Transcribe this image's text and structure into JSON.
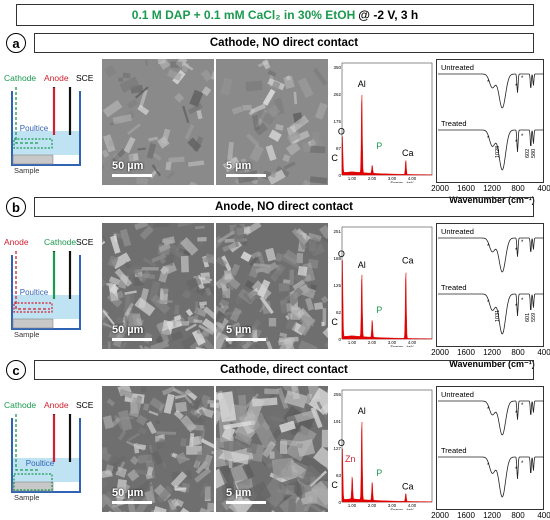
{
  "header": {
    "title_green": "0.1 M DAP + 0.1 mM CaCl₂ in 30% EtOH",
    "title_black": "@ -2 V, 3 h"
  },
  "colors": {
    "green": "#1a9a4e",
    "red": "#d1202f",
    "blue": "#2f64b5",
    "eds_fill": "#e00000"
  },
  "panels": [
    {
      "letter": "a",
      "label": "Cathode, NO direct contact",
      "schematic": {
        "labels": [
          "Cathode",
          "Anode",
          "SCE"
        ],
        "label_colors": [
          "#1a9a4e",
          "#d1202f",
          "#000000"
        ],
        "poultice": "Poultice",
        "sample": "Sample",
        "wet_box_color": "#1a9a4e",
        "direct_contact": false
      },
      "sem_left": {
        "scale": "50 µm"
      },
      "sem_right": {
        "scale": "5 µm"
      },
      "eds": {
        "ymax": "350",
        "yticks": [
          "350",
          "262",
          "175",
          "87",
          "0"
        ],
        "xticks": [
          "1.00",
          "2.00",
          "3.00",
          "4.00"
        ],
        "xlabel": "Energy - keV",
        "peaks": [
          {
            "label": "C",
            "e": 0.28,
            "h": 0.18,
            "color": "#000000"
          },
          {
            "label": "O",
            "e": 0.52,
            "h": 0.34,
            "color": "#000000"
          },
          {
            "label": "Al",
            "e": 1.49,
            "h": 0.78,
            "color": "#000000"
          },
          {
            "label": "P",
            "e": 2.01,
            "h": 0.08,
            "color": "#1a9a4e"
          },
          {
            "label": "Ca",
            "e": 3.69,
            "h": 0.14,
            "color": "#000000"
          }
        ]
      },
      "ir": {
        "untreated": "Untreated",
        "treated": "Treated",
        "annot": [
          "1028",
          "602",
          "580"
        ]
      }
    },
    {
      "letter": "b",
      "label": "Anode, NO direct contact",
      "schematic": {
        "labels": [
          "Anode",
          "Cathode",
          "SCE"
        ],
        "label_colors": [
          "#d1202f",
          "#1a9a4e",
          "#000000"
        ],
        "poultice": "Poultice",
        "sample": "Sample",
        "wet_box_color": "#d1202f",
        "direct_contact": false
      },
      "sem_left": {
        "scale": "50 µm"
      },
      "sem_right": {
        "scale": "5 µm"
      },
      "eds": {
        "ymax": "251",
        "yticks": [
          "251",
          "188",
          "125",
          "62",
          "0"
        ],
        "xticks": [
          "1.00",
          "2.00",
          "3.00",
          "4.00"
        ],
        "xlabel": "Energy - keV",
        "peaks": [
          {
            "label": "C",
            "e": 0.28,
            "h": 0.1,
            "color": "#000000"
          },
          {
            "label": "O",
            "e": 0.52,
            "h": 0.72,
            "color": "#000000"
          },
          {
            "label": "Al",
            "e": 1.49,
            "h": 0.62,
            "color": "#000000"
          },
          {
            "label": "P",
            "e": 2.01,
            "h": 0.17,
            "color": "#1a9a4e"
          },
          {
            "label": "Ca",
            "e": 3.69,
            "h": 0.66,
            "color": "#000000"
          }
        ]
      },
      "ir": {
        "untreated": "Untreated",
        "treated": "Treated",
        "annot": [
          "1031",
          "601",
          "559"
        ]
      }
    },
    {
      "letter": "c",
      "label": "Cathode, direct contact",
      "schematic": {
        "labels": [
          "Cathode",
          "Anode",
          "SCE"
        ],
        "label_colors": [
          "#1a9a4e",
          "#d1202f",
          "#000000"
        ],
        "poultice": "Poultice",
        "sample": "Sample",
        "wet_box_color": "#1a9a4e",
        "direct_contact": true
      },
      "sem_left": {
        "scale": "50 µm"
      },
      "sem_right": {
        "scale": "5 µm"
      },
      "eds": {
        "ymax": "255",
        "yticks": [
          "255",
          "191",
          "127",
          "63",
          "0"
        ],
        "xticks": [
          "1.00",
          "2.00",
          "3.00",
          "4.00"
        ],
        "xlabel": "Energy - keV",
        "peaks": [
          {
            "label": "C",
            "e": 0.28,
            "h": 0.14,
            "color": "#000000"
          },
          {
            "label": "O",
            "e": 0.52,
            "h": 0.48,
            "color": "#000000"
          },
          {
            "label": "Zn",
            "e": 1.01,
            "h": 0.22,
            "color": "#d1202f"
          },
          {
            "label": "Al",
            "e": 1.49,
            "h": 0.78,
            "color": "#000000"
          },
          {
            "label": "P",
            "e": 2.01,
            "h": 0.18,
            "color": "#1a9a4e"
          },
          {
            "label": "Ca",
            "e": 3.69,
            "h": 0.08,
            "color": "#000000"
          }
        ]
      },
      "ir": {
        "untreated": "Untreated",
        "treated": "Treated",
        "annot": []
      }
    }
  ],
  "ir_axis": {
    "ticks": [
      "2000",
      "1600",
      "1200",
      "800",
      "400"
    ],
    "xlabel": "Wavenumber (cm⁻¹)"
  }
}
